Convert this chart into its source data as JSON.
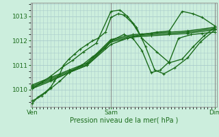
{
  "title": "Pression niveau de la mer( hPa )",
  "bg_color": "#cceedd",
  "grid_color": "#aacccc",
  "line_color": "#1a6b1a",
  "marker_color": "#1a6b1a",
  "ylim": [
    1009.3,
    1013.55
  ],
  "yticks": [
    1010,
    1011,
    1012,
    1013
  ],
  "xtick_labels": [
    "Ven",
    "Sam",
    "Dim"
  ],
  "xtick_positions": [
    0.0,
    0.43,
    1.0
  ],
  "vline_positions": [
    0.0,
    0.43,
    1.0
  ],
  "series": [
    {
      "x": [
        0.0,
        0.03,
        0.07,
        0.1,
        0.12,
        0.15,
        0.17,
        0.2,
        0.23,
        0.26,
        0.3,
        0.33,
        0.36,
        0.4,
        0.43,
        0.47,
        0.5,
        0.55,
        0.6,
        0.68,
        0.75,
        0.82,
        0.88,
        0.94,
        1.0
      ],
      "y": [
        1009.45,
        1009.7,
        1009.9,
        1010.1,
        1010.35,
        1010.65,
        1011.0,
        1011.25,
        1011.45,
        1011.65,
        1011.85,
        1012.0,
        1012.1,
        1012.35,
        1012.95,
        1013.1,
        1013.05,
        1012.7,
        1012.1,
        1011.55,
        1011.1,
        1011.25,
        1011.75,
        1012.2,
        1012.55
      ],
      "lw": 1.0
    },
    {
      "x": [
        0.0,
        0.05,
        0.1,
        0.16,
        0.22,
        0.28,
        0.35,
        0.43,
        0.48,
        0.52,
        0.57,
        0.62,
        0.67,
        0.72,
        0.78,
        0.85,
        0.92,
        1.0
      ],
      "y": [
        1010.05,
        1010.3,
        1010.55,
        1010.9,
        1011.2,
        1011.55,
        1011.9,
        1013.2,
        1013.25,
        1013.0,
        1012.55,
        1011.75,
        1010.8,
        1010.65,
        1010.9,
        1011.3,
        1011.95,
        1012.45
      ],
      "lw": 1.0
    },
    {
      "x": [
        0.0,
        0.1,
        0.2,
        0.3,
        0.43,
        0.55,
        0.65,
        0.75,
        0.85,
        1.0
      ],
      "y": [
        1010.1,
        1010.4,
        1010.7,
        1011.0,
        1011.95,
        1012.15,
        1012.2,
        1012.25,
        1012.3,
        1012.45
      ],
      "lw": 1.0
    },
    {
      "x": [
        0.0,
        0.1,
        0.2,
        0.3,
        0.43,
        0.55,
        0.65,
        0.75,
        0.85,
        1.0
      ],
      "y": [
        1010.15,
        1010.45,
        1010.75,
        1011.05,
        1012.0,
        1012.2,
        1012.25,
        1012.3,
        1012.35,
        1012.5
      ],
      "lw": 1.0
    },
    {
      "x": [
        0.0,
        0.1,
        0.2,
        0.3,
        0.43,
        0.55,
        0.65,
        0.75,
        0.85,
        1.0
      ],
      "y": [
        1010.2,
        1010.5,
        1010.8,
        1011.1,
        1012.05,
        1012.25,
        1012.3,
        1012.35,
        1012.4,
        1012.55
      ],
      "lw": 1.0
    },
    {
      "x": [
        0.0,
        0.1,
        0.2,
        0.3,
        0.43,
        0.52,
        0.6,
        0.68,
        0.75,
        0.82,
        0.88,
        0.93,
        1.0
      ],
      "y": [
        1010.05,
        1010.35,
        1010.7,
        1011.0,
        1011.85,
        1012.1,
        1012.25,
        1012.35,
        1012.4,
        1013.2,
        1013.1,
        1012.95,
        1012.6
      ],
      "lw": 1.0
    },
    {
      "x": [
        0.0,
        0.05,
        0.1,
        0.15,
        0.2,
        0.27,
        0.33,
        0.4,
        0.43,
        0.5,
        0.55,
        0.6,
        0.65,
        0.7,
        0.75,
        0.8,
        0.87,
        0.93,
        1.0
      ],
      "y": [
        1009.55,
        1009.75,
        1010.05,
        1010.35,
        1010.7,
        1011.0,
        1011.35,
        1011.7,
        1012.0,
        1012.25,
        1012.1,
        1011.6,
        1010.7,
        1010.8,
        1011.15,
        1012.1,
        1012.25,
        1012.3,
        1012.35
      ],
      "lw": 1.0
    }
  ]
}
